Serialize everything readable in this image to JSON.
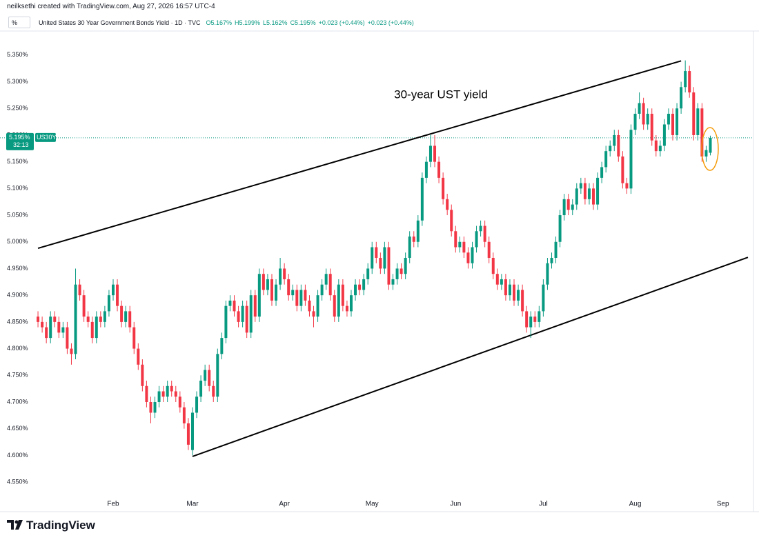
{
  "header": {
    "attribution": "neilksethi created with TradingView.com, Aug 27, 2026 16:57 UTC-4",
    "scale_button": "%",
    "symbol_title": "United States 30 Year Government Bonds Yield · 1D · TVC",
    "ohlc": [
      "O5.167%",
      "H5.199%",
      "L5.162%",
      "C5.195%"
    ],
    "change": [
      "+0.023 (+0.44%)",
      "+0.023 (+0.44%)"
    ]
  },
  "footer": {
    "logo": "TradingView"
  },
  "chart_data": {
    "type": "candlestick",
    "up_color": "#089981",
    "down_color": "#f23645",
    "last_price_label": "5.195%",
    "symbol_tag": "US30Y",
    "countdown": "32:13",
    "annotations": [
      {
        "text": "30-year UST yield"
      }
    ],
    "trendlines": [
      {
        "x": [
          0,
          154
        ],
        "y": [
          4.988,
          5.339
        ]
      },
      {
        "x": [
          37,
          170
        ],
        "y": [
          4.598,
          4.971
        ]
      }
    ],
    "xlim": [
      -1,
      171
    ],
    "xticks": [
      {
        "value": 18,
        "label": "Feb"
      },
      {
        "value": 37,
        "label": "Mar"
      },
      {
        "value": 59,
        "label": "Apr"
      },
      {
        "value": 80,
        "label": "May"
      },
      {
        "value": 100,
        "label": "Jun"
      },
      {
        "value": 121,
        "label": "Jul"
      },
      {
        "value": 143,
        "label": "Aug"
      },
      {
        "value": 164,
        "label": "Sep"
      }
    ],
    "ylim": [
      4.523,
      5.395
    ],
    "yticks": [
      {
        "value": 4.55,
        "label": "4.550%"
      },
      {
        "value": 4.6,
        "label": "4.600%"
      },
      {
        "value": 4.65,
        "label": "4.650%"
      },
      {
        "value": 4.7,
        "label": "4.700%"
      },
      {
        "value": 4.75,
        "label": "4.750%"
      },
      {
        "value": 4.8,
        "label": "4.800%"
      },
      {
        "value": 4.85,
        "label": "4.850%"
      },
      {
        "value": 4.9,
        "label": "4.900%"
      },
      {
        "value": 4.95,
        "label": "4.950%"
      },
      {
        "value": 5.0,
        "label": "5.000%"
      },
      {
        "value": 5.05,
        "label": "5.050%"
      },
      {
        "value": 5.1,
        "label": "5.100%"
      },
      {
        "value": 5.15,
        "label": "5.150%"
      },
      {
        "value": 5.2,
        "label": "5.200%"
      },
      {
        "value": 5.25,
        "label": "5.250%"
      },
      {
        "value": 5.3,
        "label": "5.300%"
      },
      {
        "value": 5.35,
        "label": "5.350%"
      }
    ],
    "grid": true,
    "open": [
      4.86,
      4.85,
      4.84,
      4.82,
      4.86,
      4.85,
      4.83,
      4.84,
      4.8,
      4.79,
      4.92,
      4.9,
      4.86,
      4.85,
      4.82,
      4.86,
      4.85,
      4.87,
      4.9,
      4.92,
      4.88,
      4.85,
      4.87,
      4.84,
      4.8,
      4.77,
      4.73,
      4.7,
      4.68,
      4.7,
      4.72,
      4.71,
      4.73,
      4.72,
      4.71,
      4.69,
      4.66,
      4.61,
      4.68,
      4.71,
      4.74,
      4.76,
      4.73,
      4.71,
      4.79,
      4.82,
      4.88,
      4.89,
      4.87,
      4.85,
      4.88,
      4.83,
      4.9,
      4.86,
      4.94,
      4.91,
      4.93,
      4.89,
      4.92,
      4.95,
      4.93,
      4.9,
      4.91,
      4.88,
      4.91,
      4.89,
      4.87,
      4.86,
      4.9,
      4.92,
      4.94,
      4.9,
      4.86,
      4.92,
      4.88,
      4.87,
      4.9,
      4.92,
      4.91,
      4.93,
      4.95,
      4.99,
      4.97,
      4.95,
      4.99,
      4.92,
      4.93,
      4.95,
      4.94,
      4.97,
      5.01,
      5.0,
      5.04,
      5.12,
      5.15,
      5.18,
      5.15,
      5.12,
      5.08,
      5.06,
      5.02,
      4.99,
      5.0,
      4.98,
      4.96,
      4.99,
      5.02,
      5.03,
      5.0,
      4.97,
      4.94,
      4.92,
      4.93,
      4.9,
      4.92,
      4.89,
      4.91,
      4.87,
      4.84,
      4.86,
      4.85,
      4.87,
      4.92,
      4.96,
      4.97,
      5.0,
      5.05,
      5.08,
      5.06,
      5.07,
      5.1,
      5.11,
      5.08,
      5.1,
      5.07,
      5.12,
      5.14,
      5.17,
      5.18,
      5.2,
      5.16,
      5.11,
      5.1,
      5.21,
      5.24,
      5.26,
      5.22,
      5.24,
      5.19,
      5.17,
      5.18,
      5.22,
      5.24,
      5.2,
      5.25,
      5.29,
      5.32,
      5.28,
      5.2,
      5.25,
      5.16,
      5.167
    ],
    "high": [
      4.87,
      4.86,
      4.85,
      4.87,
      4.87,
      4.86,
      4.85,
      4.85,
      4.81,
      4.95,
      4.93,
      4.91,
      4.87,
      4.86,
      4.87,
      4.87,
      4.88,
      4.91,
      4.93,
      4.93,
      4.89,
      4.88,
      4.88,
      4.85,
      4.81,
      4.78,
      4.74,
      4.71,
      4.71,
      4.73,
      4.73,
      4.74,
      4.74,
      4.73,
      4.72,
      4.7,
      4.67,
      4.69,
      4.72,
      4.75,
      4.77,
      4.77,
      4.74,
      4.8,
      4.83,
      4.89,
      4.9,
      4.9,
      4.88,
      4.89,
      4.89,
      4.91,
      4.91,
      4.95,
      4.95,
      4.94,
      4.94,
      4.93,
      4.97,
      4.96,
      4.94,
      4.92,
      4.92,
      4.92,
      4.92,
      4.9,
      4.88,
      4.91,
      4.93,
      4.95,
      4.95,
      4.91,
      4.93,
      4.93,
      4.89,
      4.91,
      4.93,
      4.93,
      4.94,
      4.96,
      5.0,
      5.0,
      4.98,
      5.0,
      5.0,
      4.94,
      4.96,
      4.96,
      4.98,
      5.02,
      5.02,
      5.05,
      5.13,
      5.16,
      5.2,
      5.2,
      5.16,
      5.13,
      5.09,
      5.07,
      5.03,
      5.01,
      5.01,
      4.99,
      5.0,
      5.03,
      5.04,
      5.04,
      5.01,
      4.98,
      4.95,
      4.94,
      4.94,
      4.93,
      4.93,
      4.92,
      4.92,
      4.88,
      4.87,
      4.87,
      4.88,
      4.93,
      4.97,
      4.98,
      5.01,
      5.06,
      5.09,
      5.09,
      5.08,
      5.11,
      5.12,
      5.12,
      5.11,
      5.11,
      5.13,
      5.15,
      5.18,
      5.19,
      5.21,
      5.21,
      5.17,
      5.12,
      5.22,
      5.25,
      5.28,
      5.27,
      5.25,
      5.25,
      5.2,
      5.19,
      5.23,
      5.25,
      5.25,
      5.26,
      5.3,
      5.34,
      5.33,
      5.29,
      5.26,
      5.26,
      5.18,
      5.199
    ],
    "low": [
      4.84,
      4.83,
      4.81,
      4.81,
      4.84,
      4.82,
      4.82,
      4.79,
      4.77,
      4.78,
      4.89,
      4.85,
      4.84,
      4.81,
      4.81,
      4.84,
      4.84,
      4.86,
      4.89,
      4.87,
      4.84,
      4.84,
      4.83,
      4.79,
      4.76,
      4.72,
      4.69,
      4.66,
      4.67,
      4.69,
      4.7,
      4.7,
      4.71,
      4.7,
      4.68,
      4.65,
      4.61,
      4.6,
      4.67,
      4.7,
      4.73,
      4.72,
      4.7,
      4.7,
      4.78,
      4.81,
      4.87,
      4.86,
      4.84,
      4.84,
      4.82,
      4.82,
      4.85,
      4.85,
      4.9,
      4.9,
      4.88,
      4.88,
      4.91,
      4.92,
      4.89,
      4.89,
      4.87,
      4.87,
      4.88,
      4.86,
      4.84,
      4.85,
      4.89,
      4.91,
      4.89,
      4.85,
      4.85,
      4.87,
      4.86,
      4.86,
      4.89,
      4.9,
      4.9,
      4.92,
      4.94,
      4.96,
      4.94,
      4.94,
      4.91,
      4.91,
      4.92,
      4.93,
      4.93,
      4.96,
      4.99,
      4.99,
      5.03,
      5.11,
      5.14,
      5.14,
      5.11,
      5.07,
      5.05,
      5.01,
      4.98,
      4.98,
      4.97,
      4.95,
      4.95,
      4.98,
      5.01,
      4.99,
      4.96,
      4.93,
      4.91,
      4.91,
      4.89,
      4.89,
      4.88,
      4.88,
      4.86,
      4.83,
      4.82,
      4.84,
      4.84,
      4.86,
      4.91,
      4.95,
      4.96,
      4.99,
      5.04,
      5.05,
      5.05,
      5.06,
      5.09,
      5.07,
      5.07,
      5.06,
      5.06,
      5.11,
      5.13,
      5.16,
      5.17,
      5.15,
      5.1,
      5.09,
      5.09,
      5.2,
      5.23,
      5.21,
      5.21,
      5.18,
      5.16,
      5.16,
      5.17,
      5.21,
      5.19,
      5.19,
      5.24,
      5.28,
      5.27,
      5.19,
      5.19,
      5.15,
      5.15,
      5.162
    ],
    "close": [
      4.85,
      4.84,
      4.82,
      4.86,
      4.85,
      4.83,
      4.84,
      4.8,
      4.79,
      4.92,
      4.9,
      4.86,
      4.85,
      4.82,
      4.86,
      4.85,
      4.87,
      4.9,
      4.92,
      4.88,
      4.85,
      4.87,
      4.84,
      4.8,
      4.77,
      4.73,
      4.7,
      4.68,
      4.7,
      4.72,
      4.71,
      4.73,
      4.72,
      4.71,
      4.69,
      4.66,
      4.62,
      4.68,
      4.71,
      4.74,
      4.76,
      4.73,
      4.71,
      4.79,
      4.82,
      4.88,
      4.89,
      4.87,
      4.85,
      4.88,
      4.83,
      4.9,
      4.86,
      4.94,
      4.91,
      4.93,
      4.89,
      4.92,
      4.95,
      4.93,
      4.9,
      4.91,
      4.88,
      4.91,
      4.89,
      4.87,
      4.86,
      4.9,
      4.92,
      4.94,
      4.9,
      4.86,
      4.92,
      4.88,
      4.87,
      4.9,
      4.92,
      4.91,
      4.93,
      4.95,
      4.99,
      4.97,
      4.95,
      4.99,
      4.92,
      4.93,
      4.95,
      4.94,
      4.97,
      5.01,
      5.0,
      5.04,
      5.12,
      5.15,
      5.18,
      5.15,
      5.12,
      5.08,
      5.06,
      5.02,
      4.99,
      5.0,
      4.98,
      4.96,
      4.99,
      5.02,
      5.03,
      5.0,
      4.97,
      4.94,
      4.92,
      4.93,
      4.9,
      4.92,
      4.89,
      4.91,
      4.87,
      4.84,
      4.86,
      4.85,
      4.87,
      4.92,
      4.96,
      4.97,
      5.0,
      5.05,
      5.08,
      5.06,
      5.07,
      5.1,
      5.11,
      5.08,
      5.1,
      5.07,
      5.12,
      5.14,
      5.17,
      5.18,
      5.2,
      5.16,
      5.11,
      5.1,
      5.21,
      5.24,
      5.26,
      5.22,
      5.24,
      5.19,
      5.17,
      5.18,
      5.22,
      5.24,
      5.2,
      5.25,
      5.29,
      5.32,
      5.28,
      5.2,
      5.25,
      5.16,
      5.172,
      5.195
    ]
  }
}
